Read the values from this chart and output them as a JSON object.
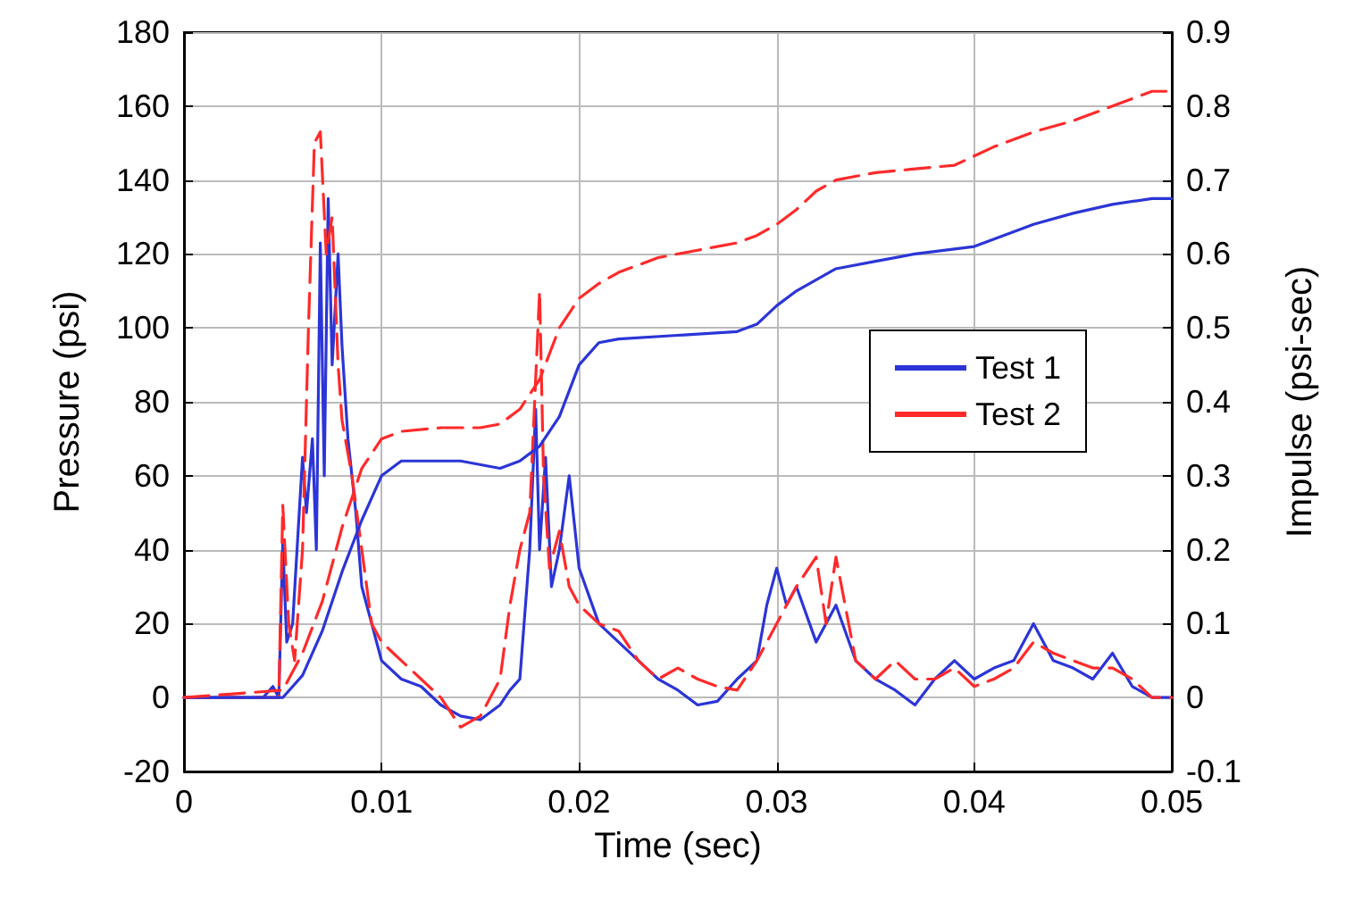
{
  "chart_data": {
    "type": "line",
    "xlabel": "Time (sec)",
    "ylabel": "Pressure (psi)",
    "y2label": "Impulse (psi-sec)",
    "xlim": [
      0,
      0.05
    ],
    "xticks": [
      0,
      0.01,
      0.02,
      0.03,
      0.04,
      0.05
    ],
    "ylim": [
      -20,
      180
    ],
    "yticks": [
      -20,
      0,
      20,
      40,
      60,
      80,
      100,
      120,
      140,
      160,
      180
    ],
    "y2lim": [
      -0.1,
      0.9
    ],
    "y2ticks": [
      -0.1,
      0,
      0.1,
      0.2,
      0.3,
      0.4,
      0.5,
      0.6,
      0.7,
      0.8,
      0.9
    ],
    "grid": true,
    "legend": "right",
    "marker": "none",
    "series": [
      {
        "name": "Test 1",
        "color": "#2b35d6",
        "line_style": "solid",
        "x": [
          0,
          0.004,
          0.0045,
          0.0048,
          0.005,
          0.0052,
          0.0055,
          0.006,
          0.0062,
          0.0065,
          0.0067,
          0.0069,
          0.0071,
          0.0073,
          0.0075,
          0.0078,
          0.008,
          0.0083,
          0.0087,
          0.009,
          0.0095,
          0.01,
          0.011,
          0.012,
          0.013,
          0.014,
          0.015,
          0.016,
          0.0165,
          0.017,
          0.0175,
          0.0178,
          0.018,
          0.0183,
          0.0186,
          0.019,
          0.0195,
          0.02,
          0.021,
          0.022,
          0.023,
          0.024,
          0.025,
          0.026,
          0.027,
          0.028,
          0.029,
          0.0295,
          0.03,
          0.0305,
          0.031,
          0.032,
          0.033,
          0.034,
          0.035,
          0.036,
          0.037,
          0.038,
          0.039,
          0.04,
          0.041,
          0.042,
          0.043,
          0.044,
          0.045,
          0.046,
          0.047,
          0.048,
          0.049,
          0.05
        ],
        "values": [
          0,
          0,
          3,
          0,
          42,
          15,
          20,
          65,
          50,
          70,
          40,
          123,
          60,
          135,
          90,
          120,
          95,
          70,
          50,
          30,
          20,
          10,
          5,
          3,
          -2,
          -5,
          -6,
          -2,
          2,
          5,
          40,
          78,
          40,
          65,
          30,
          40,
          60,
          35,
          20,
          15,
          10,
          5,
          2,
          -2,
          -1,
          5,
          10,
          25,
          35,
          25,
          30,
          15,
          25,
          10,
          5,
          2,
          -2,
          5,
          10,
          5,
          8,
          10,
          20,
          10,
          8,
          5,
          12,
          3,
          0,
          0
        ]
      },
      {
        "name": "Test 2",
        "color": "#ff2a2a",
        "line_style": "dashed",
        "x": [
          0,
          0.004,
          0.0048,
          0.005,
          0.0053,
          0.0056,
          0.006,
          0.0063,
          0.0066,
          0.0069,
          0.0072,
          0.0075,
          0.0078,
          0.008,
          0.0085,
          0.009,
          0.0095,
          0.01,
          0.011,
          0.012,
          0.013,
          0.014,
          0.015,
          0.016,
          0.0165,
          0.017,
          0.0175,
          0.018,
          0.0182,
          0.0185,
          0.019,
          0.0195,
          0.02,
          0.021,
          0.022,
          0.023,
          0.024,
          0.025,
          0.026,
          0.027,
          0.028,
          0.029,
          0.03,
          0.031,
          0.032,
          0.0325,
          0.033,
          0.034,
          0.035,
          0.036,
          0.037,
          0.038,
          0.039,
          0.04,
          0.041,
          0.042,
          0.043,
          0.044,
          0.045,
          0.046,
          0.047,
          0.048,
          0.049,
          0.05
        ],
        "values": [
          0,
          0,
          0,
          52,
          20,
          10,
          40,
          100,
          150,
          153,
          120,
          130,
          90,
          75,
          60,
          40,
          20,
          15,
          10,
          5,
          0,
          -8,
          -5,
          5,
          25,
          40,
          50,
          110,
          60,
          35,
          45,
          30,
          25,
          20,
          18,
          10,
          5,
          8,
          5,
          3,
          2,
          10,
          20,
          30,
          38,
          20,
          38,
          10,
          5,
          10,
          5,
          5,
          8,
          3,
          5,
          8,
          15,
          12,
          10,
          8,
          8,
          5,
          0,
          0
        ]
      },
      {
        "color": "#2b35d6",
        "line_style": "solid",
        "axis": "y2",
        "x": [
          0,
          0.005,
          0.006,
          0.007,
          0.008,
          0.009,
          0.01,
          0.011,
          0.012,
          0.014,
          0.016,
          0.017,
          0.018,
          0.019,
          0.02,
          0.021,
          0.022,
          0.025,
          0.028,
          0.029,
          0.03,
          0.031,
          0.033,
          0.035,
          0.037,
          0.04,
          0.043,
          0.045,
          0.047,
          0.049,
          0.05
        ],
        "values": [
          0,
          0,
          0.03,
          0.09,
          0.17,
          0.24,
          0.3,
          0.32,
          0.32,
          0.32,
          0.31,
          0.32,
          0.34,
          0.38,
          0.45,
          0.48,
          0.485,
          0.49,
          0.495,
          0.505,
          0.53,
          0.55,
          0.58,
          0.59,
          0.6,
          0.61,
          0.64,
          0.655,
          0.667,
          0.675,
          0.675
        ]
      },
      {
        "color": "#ff2a2a",
        "line_style": "dashed",
        "axis": "y2",
        "x": [
          0,
          0.005,
          0.006,
          0.007,
          0.008,
          0.009,
          0.01,
          0.011,
          0.013,
          0.015,
          0.016,
          0.017,
          0.018,
          0.019,
          0.02,
          0.021,
          0.022,
          0.024,
          0.026,
          0.028,
          0.029,
          0.03,
          0.031,
          0.032,
          0.033,
          0.035,
          0.037,
          0.039,
          0.041,
          0.043,
          0.045,
          0.047,
          0.049,
          0.05
        ],
        "values": [
          0,
          0.01,
          0.06,
          0.13,
          0.23,
          0.31,
          0.35,
          0.36,
          0.365,
          0.365,
          0.37,
          0.39,
          0.43,
          0.5,
          0.54,
          0.56,
          0.575,
          0.595,
          0.605,
          0.615,
          0.625,
          0.64,
          0.66,
          0.685,
          0.7,
          0.71,
          0.715,
          0.72,
          0.745,
          0.765,
          0.78,
          0.8,
          0.82,
          0.82
        ]
      }
    ]
  }
}
